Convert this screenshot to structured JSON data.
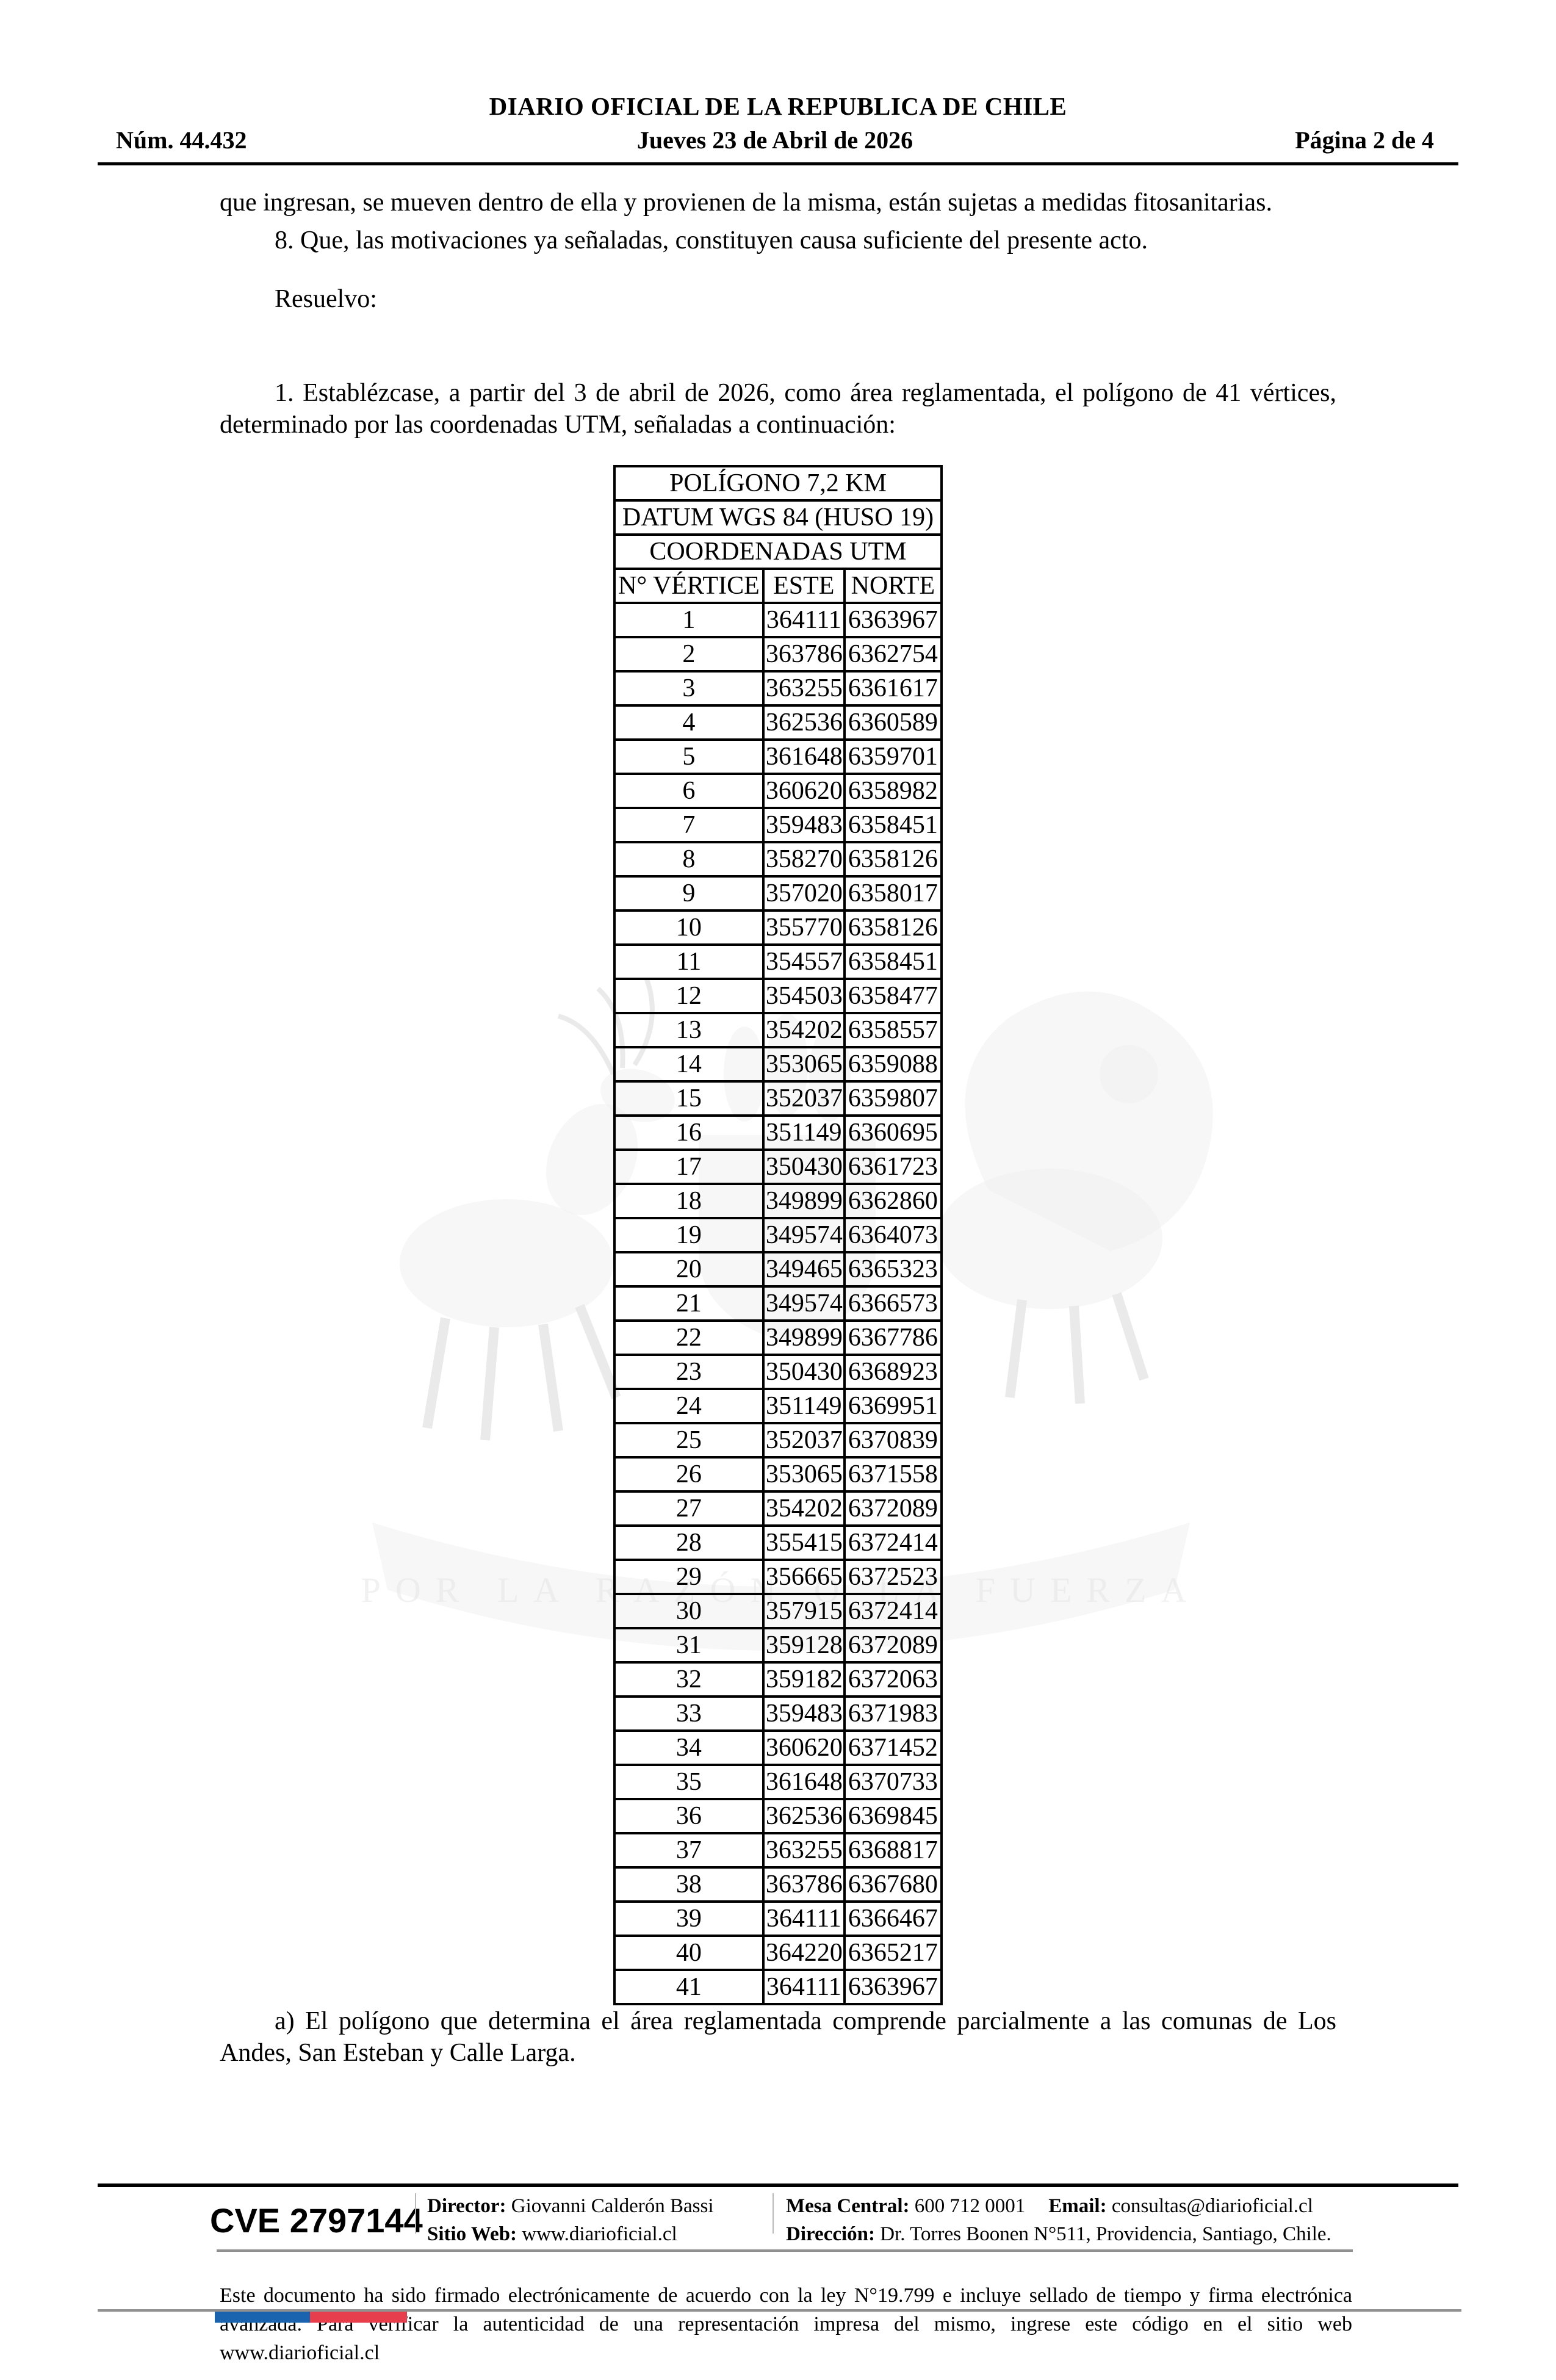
{
  "header": {
    "masthead": "DIARIO OFICIAL DE LA REPUBLICA DE CHILE",
    "issue_number": "Núm. 44.432",
    "date": "Jueves 23 de Abril de 2026",
    "page_indicator": "Página 2 de 4"
  },
  "body": {
    "continuation_paragraph": "que ingresan, se mueven dentro de ella y provienen de la misma, están sujetas a medidas fitosanitarias.",
    "item_8": "8. Que, las motivaciones ya señaladas, constituyen causa suficiente del presente acto.",
    "resolve_heading": "Resuelvo:",
    "resolve_item_1": "1. Establézcase, a partir del 3 de abril de 2026, como área reglamentada, el polígono de 41 vértices, determinado por las coordenadas UTM, señaladas a continuación:",
    "clause_a": "a) El polígono que determina el área reglamentada comprende parcialmente a las comunas de Los Andes, San Esteban y Calle Larga."
  },
  "table": {
    "title": "POLÍGONO 7,2 KM",
    "datum": "DATUM WGS 84 (HUSO 19)",
    "subtitle": "COORDENADAS UTM",
    "columns": [
      "N° VÉRTICE",
      "ESTE",
      "NORTE"
    ],
    "rows": [
      [
        "1",
        "364111",
        "6363967"
      ],
      [
        "2",
        "363786",
        "6362754"
      ],
      [
        "3",
        "363255",
        "6361617"
      ],
      [
        "4",
        "362536",
        "6360589"
      ],
      [
        "5",
        "361648",
        "6359701"
      ],
      [
        "6",
        "360620",
        "6358982"
      ],
      [
        "7",
        "359483",
        "6358451"
      ],
      [
        "8",
        "358270",
        "6358126"
      ],
      [
        "9",
        "357020",
        "6358017"
      ],
      [
        "10",
        "355770",
        "6358126"
      ],
      [
        "11",
        "354557",
        "6358451"
      ],
      [
        "12",
        "354503",
        "6358477"
      ],
      [
        "13",
        "354202",
        "6358557"
      ],
      [
        "14",
        "353065",
        "6359088"
      ],
      [
        "15",
        "352037",
        "6359807"
      ],
      [
        "16",
        "351149",
        "6360695"
      ],
      [
        "17",
        "350430",
        "6361723"
      ],
      [
        "18",
        "349899",
        "6362860"
      ],
      [
        "19",
        "349574",
        "6364073"
      ],
      [
        "20",
        "349465",
        "6365323"
      ],
      [
        "21",
        "349574",
        "6366573"
      ],
      [
        "22",
        "349899",
        "6367786"
      ],
      [
        "23",
        "350430",
        "6368923"
      ],
      [
        "24",
        "351149",
        "6369951"
      ],
      [
        "25",
        "352037",
        "6370839"
      ],
      [
        "26",
        "353065",
        "6371558"
      ],
      [
        "27",
        "354202",
        "6372089"
      ],
      [
        "28",
        "355415",
        "6372414"
      ],
      [
        "29",
        "356665",
        "6372523"
      ],
      [
        "30",
        "357915",
        "6372414"
      ],
      [
        "31",
        "359128",
        "6372089"
      ],
      [
        "32",
        "359182",
        "6372063"
      ],
      [
        "33",
        "359483",
        "6371983"
      ],
      [
        "34",
        "360620",
        "6371452"
      ],
      [
        "35",
        "361648",
        "6370733"
      ],
      [
        "36",
        "362536",
        "6369845"
      ],
      [
        "37",
        "363255",
        "6368817"
      ],
      [
        "38",
        "363786",
        "6367680"
      ],
      [
        "39",
        "364111",
        "6366467"
      ],
      [
        "40",
        "364220",
        "6365217"
      ],
      [
        "41",
        "364111",
        "6363967"
      ]
    ]
  },
  "watermark": {
    "motto": "POR LA RAZÓN O LA FUERZA"
  },
  "footer": {
    "cve": "CVE 2797144",
    "director_label": "Director:",
    "director": "Giovanni Calderón Bassi",
    "website_label": "Sitio Web:",
    "website": "www.diarioficial.cl",
    "phone_label": "Mesa Central:",
    "phone": "600 712 0001",
    "email_label": "Email:",
    "email": "consultas@diarioficial.cl",
    "address_label": "Dirección:",
    "address": "Dr. Torres Boonen N°511, Providencia, Santiago, Chile.",
    "legal": "Este documento ha sido firmado electrónicamente de acuerdo con la ley N°19.799 e incluye sellado de tiempo y firma electrónica avanzada. Para verificar la autenticidad de una representación impresa del mismo, ingrese este código en el sitio web www.diarioficial.cl"
  },
  "colors": {
    "flag_blue": "#1a63ae",
    "flag_red": "#e73e4e",
    "rule_gray": "#909090"
  }
}
